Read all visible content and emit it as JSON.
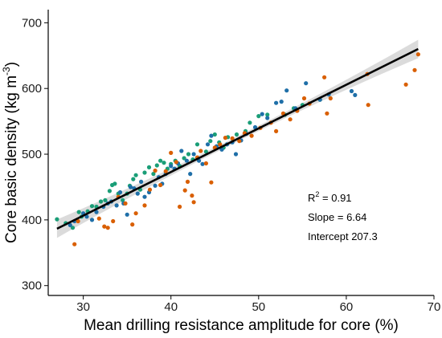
{
  "chart_data": {
    "type": "scatter",
    "xlabel": "Mean drilling resistance amplitude for core (%)",
    "ylabel_main": "Core basic density (kg m",
    "ylabel_sup": "-3",
    "ylabel_close": ")",
    "xlim": [
      26,
      70
    ],
    "ylim": [
      285,
      720
    ],
    "xticks": [
      30,
      40,
      50,
      60,
      70
    ],
    "yticks": [
      300,
      400,
      500,
      600,
      700
    ],
    "grid": false,
    "colors": {
      "blue": "#1f6fa8",
      "green": "#1a9e77",
      "orange": "#d95f02",
      "fit": "#000000",
      "ci": "#bdbdbd"
    },
    "fit": {
      "intercept": 207.3,
      "slope": 6.64,
      "x_range": [
        27.0,
        68.2
      ]
    },
    "annotations": {
      "r2_prefix": "R",
      "r2_sup": "2",
      "r2_value": " = 0.91",
      "slope": "Slope = 6.64",
      "intercept": "Intercept 207.3"
    },
    "series": [
      {
        "color_key": "green",
        "points": [
          [
            27.0,
            401
          ],
          [
            28.0,
            395
          ],
          [
            28.8,
            388
          ],
          [
            29.5,
            412
          ],
          [
            29.8,
            405
          ],
          [
            30.5,
            413
          ],
          [
            31.0,
            421
          ],
          [
            31.5,
            420
          ],
          [
            32.0,
            428
          ],
          [
            32.5,
            430
          ],
          [
            33.0,
            444
          ],
          [
            33.3,
            453
          ],
          [
            33.6,
            455
          ],
          [
            34.0,
            440
          ],
          [
            34.5,
            430
          ],
          [
            35.0,
            440
          ],
          [
            35.3,
            452
          ],
          [
            35.7,
            462
          ],
          [
            36.0,
            468
          ],
          [
            36.5,
            446
          ],
          [
            37.0,
            472
          ],
          [
            37.5,
            480
          ],
          [
            38.0,
            470
          ],
          [
            38.4,
            483
          ],
          [
            38.8,
            490
          ],
          [
            39.2,
            487
          ],
          [
            39.6,
            478
          ],
          [
            40.0,
            485
          ],
          [
            40.5,
            490
          ],
          [
            41.0,
            482
          ],
          [
            41.5,
            494
          ],
          [
            42.0,
            500
          ],
          [
            42.5,
            492
          ],
          [
            43.0,
            515
          ],
          [
            44.0,
            504
          ],
          [
            44.5,
            520
          ],
          [
            45.0,
            530
          ],
          [
            45.5,
            518
          ],
          [
            46.0,
            510
          ],
          [
            46.5,
            526
          ],
          [
            47.5,
            530
          ],
          [
            48.5,
            535
          ],
          [
            49.0,
            548
          ],
          [
            50.0,
            558
          ],
          [
            51.0,
            560
          ],
          [
            53.0,
            560
          ],
          [
            54.0,
            570
          ],
          [
            55.0,
            575
          ],
          [
            57.0,
            583
          ]
        ]
      },
      {
        "color_key": "blue",
        "points": [
          [
            28.5,
            392
          ],
          [
            29.0,
            398
          ],
          [
            30.0,
            410
          ],
          [
            30.4,
            405
          ],
          [
            31.0,
            400
          ],
          [
            31.5,
            412
          ],
          [
            32.3,
            420
          ],
          [
            32.8,
            425
          ],
          [
            33.2,
            428
          ],
          [
            33.8,
            422
          ],
          [
            34.2,
            442
          ],
          [
            34.6,
            425
          ],
          [
            35.0,
            408
          ],
          [
            35.4,
            450
          ],
          [
            35.8,
            448
          ],
          [
            36.2,
            440
          ],
          [
            36.6,
            458
          ],
          [
            37.0,
            435
          ],
          [
            37.5,
            442
          ],
          [
            38.2,
            452
          ],
          [
            38.6,
            465
          ],
          [
            39.0,
            455
          ],
          [
            39.4,
            470
          ],
          [
            40.0,
            482
          ],
          [
            40.4,
            478
          ],
          [
            40.8,
            486
          ],
          [
            41.2,
            505
          ],
          [
            41.8,
            490
          ],
          [
            42.2,
            470
          ],
          [
            42.6,
            500
          ],
          [
            43.2,
            490
          ],
          [
            43.6,
            485
          ],
          [
            44.2,
            515
          ],
          [
            44.6,
            528
          ],
          [
            45.2,
            512
          ],
          [
            45.8,
            507
          ],
          [
            46.4,
            515
          ],
          [
            47.0,
            518
          ],
          [
            47.4,
            500
          ],
          [
            48.0,
            521
          ],
          [
            48.6,
            531
          ],
          [
            49.6,
            541
          ],
          [
            50.4,
            561
          ],
          [
            51.0,
            555
          ],
          [
            52.0,
            578
          ],
          [
            52.6,
            580
          ],
          [
            53.2,
            597
          ],
          [
            54.2,
            570
          ],
          [
            55.4,
            608
          ],
          [
            57.0,
            583
          ],
          [
            58.0,
            591
          ],
          [
            60.6,
            596
          ],
          [
            61.0,
            590
          ]
        ]
      },
      {
        "color_key": "orange",
        "points": [
          [
            29.0,
            363
          ],
          [
            29.4,
            398
          ],
          [
            31.8,
            402
          ],
          [
            32.4,
            390
          ],
          [
            32.8,
            388
          ],
          [
            33.4,
            398
          ],
          [
            34.0,
            435
          ],
          [
            34.8,
            425
          ],
          [
            35.6,
            393
          ],
          [
            36.0,
            410
          ],
          [
            37.0,
            422
          ],
          [
            37.6,
            446
          ],
          [
            38.2,
            475
          ],
          [
            38.8,
            453
          ],
          [
            39.4,
            474
          ],
          [
            40.0,
            502
          ],
          [
            40.6,
            488
          ],
          [
            41.0,
            420
          ],
          [
            41.6,
            445
          ],
          [
            41.9,
            458
          ],
          [
            42.4,
            437
          ],
          [
            42.6,
            427
          ],
          [
            43.0,
            495
          ],
          [
            43.4,
            505
          ],
          [
            44.0,
            486
          ],
          [
            44.6,
            457
          ],
          [
            45.0,
            510
          ],
          [
            45.6,
            515
          ],
          [
            46.2,
            525
          ],
          [
            47.0,
            524
          ],
          [
            47.8,
            520
          ],
          [
            48.4,
            532
          ],
          [
            49.2,
            528
          ],
          [
            50.2,
            540
          ],
          [
            51.4,
            548
          ],
          [
            52.0,
            535
          ],
          [
            52.8,
            562
          ],
          [
            53.6,
            553
          ],
          [
            54.4,
            566
          ],
          [
            55.2,
            585
          ],
          [
            55.8,
            577
          ],
          [
            57.5,
            617
          ],
          [
            57.8,
            562
          ],
          [
            58.2,
            585
          ],
          [
            62.4,
            622
          ],
          [
            62.5,
            575
          ],
          [
            66.8,
            606
          ],
          [
            67.8,
            628
          ],
          [
            68.2,
            652
          ]
        ]
      }
    ]
  }
}
